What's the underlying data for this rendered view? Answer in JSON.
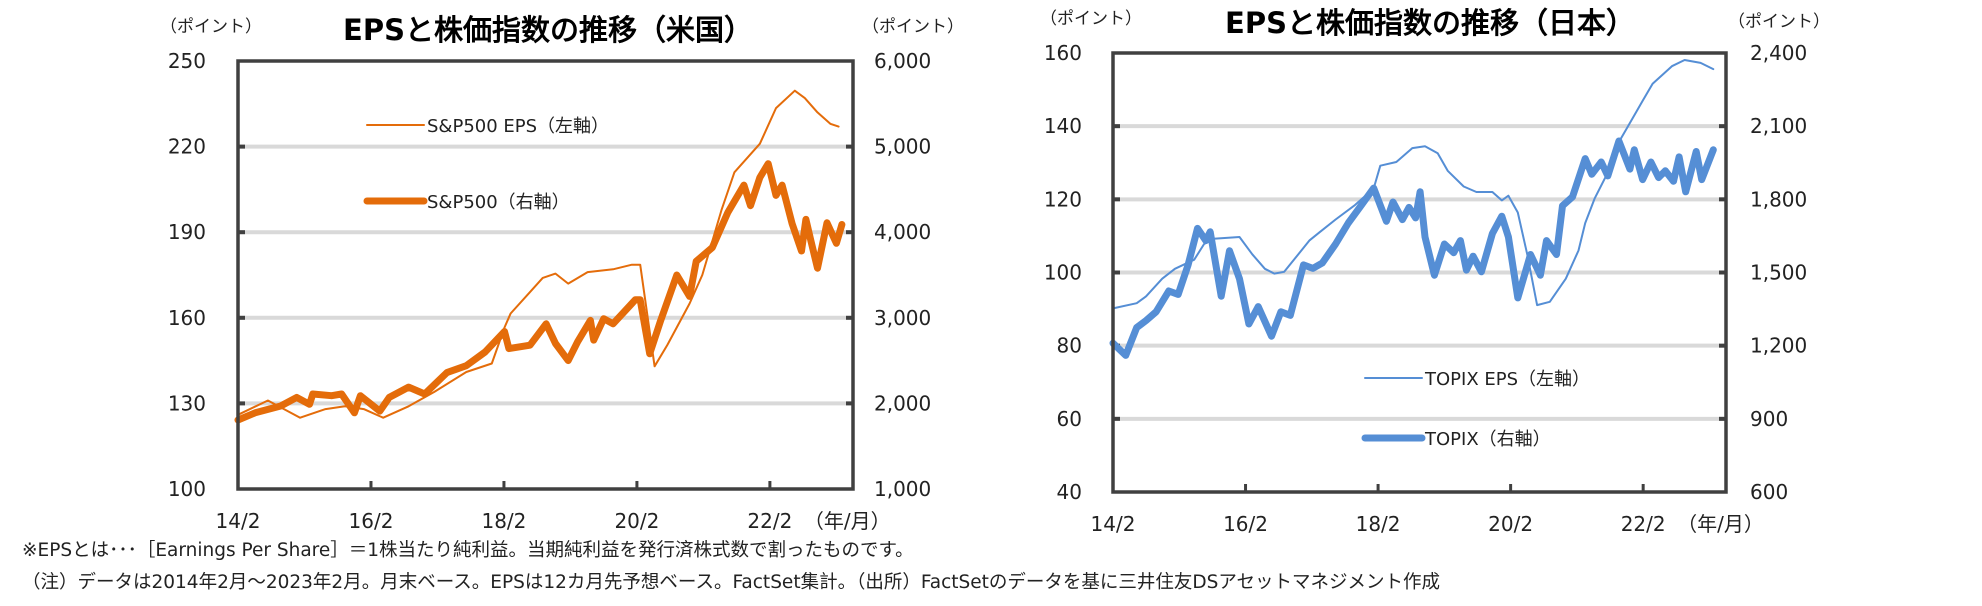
{
  "chart_data": [
    {
      "type": "line",
      "title": "EPSと株価指数の推移（米国）",
      "ylabel_left": "（ポイント）",
      "ylabel_right": "（ポイント）",
      "xlabel": "（年/月）",
      "x_unit_note": "months since 2014/2",
      "xlim": [
        0,
        111
      ],
      "x_ticks": [
        0,
        24,
        48,
        72,
        96
      ],
      "x_tick_labels": [
        "14/2",
        "16/2",
        "18/2",
        "20/2",
        "22/2"
      ],
      "ylim_left": [
        100,
        250
      ],
      "y_ticks_left": [
        100,
        130,
        160,
        190,
        220,
        250
      ],
      "y_tick_labels_left": [
        "100",
        "130",
        "160",
        "190",
        "220",
        "250"
      ],
      "ylim_right": [
        1000,
        6000
      ],
      "y_ticks_right": [
        1000,
        2000,
        3000,
        4000,
        5000,
        6000
      ],
      "y_tick_labels_right": [
        "1,000",
        "2,000",
        "3,000",
        "4,000",
        "5,000",
        "6,000"
      ],
      "grid": true,
      "color": "#E46C0A",
      "series": [
        {
          "name": "S&P500 EPS（左軸）",
          "axis": "left",
          "weight": "thin",
          "points": [
            [
              0,
              126
            ],
            [
              5.4,
              131
            ],
            [
              11.2,
              125
            ],
            [
              15.8,
              128
            ],
            [
              19.3,
              129
            ],
            [
              22.7,
              128
            ],
            [
              26.2,
              125
            ],
            [
              30.8,
              129
            ],
            [
              35.4,
              134
            ],
            [
              41.2,
              141
            ],
            [
              45.8,
              144
            ],
            [
              48.1,
              156.6
            ],
            [
              49.2,
              161.5
            ],
            [
              52.7,
              169
            ],
            [
              55,
              174
            ],
            [
              57.3,
              175.5
            ],
            [
              59.6,
              172
            ],
            [
              63.1,
              176
            ],
            [
              67.7,
              177
            ],
            [
              71.1,
              178.6
            ],
            [
              72.6,
              178.6
            ],
            [
              75.2,
              143
            ],
            [
              77.5,
              150.5
            ],
            [
              81.5,
              165
            ],
            [
              83.8,
              175
            ],
            [
              87.3,
              198
            ],
            [
              89.6,
              211
            ],
            [
              94.2,
              221
            ],
            [
              97.1,
              233.5
            ],
            [
              100.5,
              239.6
            ],
            [
              102.3,
              237
            ],
            [
              104.6,
              232
            ],
            [
              106.9,
              228
            ],
            [
              108.4,
              227
            ]
          ]
        },
        {
          "name": "S&P500（右軸）",
          "axis": "right",
          "weight": "thick",
          "points": [
            [
              0,
              1806
            ],
            [
              3.1,
              1890
            ],
            [
              7.7,
              1970
            ],
            [
              10.6,
              2070
            ],
            [
              12.9,
              1990
            ],
            [
              13.5,
              2110
            ],
            [
              16.9,
              2090
            ],
            [
              18.7,
              2110
            ],
            [
              21,
              1890
            ],
            [
              22.1,
              2090
            ],
            [
              25.6,
              1910
            ],
            [
              27.3,
              2070
            ],
            [
              30.8,
              2190
            ],
            [
              33.7,
              2110
            ],
            [
              37.7,
              2360
            ],
            [
              41.2,
              2440
            ],
            [
              44.6,
              2600
            ],
            [
              48.1,
              2840
            ],
            [
              48.9,
              2640
            ],
            [
              52.7,
              2680
            ],
            [
              55.6,
              2930
            ],
            [
              57.3,
              2700
            ],
            [
              59.6,
              2500
            ],
            [
              61.3,
              2720
            ],
            [
              63.6,
              2970
            ],
            [
              64.2,
              2740
            ],
            [
              66,
              2990
            ],
            [
              67.7,
              2930
            ],
            [
              71.7,
              3210
            ],
            [
              72.6,
              3210
            ],
            [
              74.3,
              2580
            ],
            [
              76.3,
              2970
            ],
            [
              79.2,
              3500
            ],
            [
              81.5,
              3250
            ],
            [
              82.7,
              3660
            ],
            [
              85.6,
              3820
            ],
            [
              88.4,
              4230
            ],
            [
              91.3,
              4550
            ],
            [
              92.5,
              4310
            ],
            [
              94.2,
              4640
            ],
            [
              95.7,
              4800
            ],
            [
              97.1,
              4430
            ],
            [
              98.2,
              4550
            ],
            [
              100,
              4100
            ],
            [
              101.7,
              3780
            ],
            [
              102.5,
              4150
            ],
            [
              103.4,
              3900
            ],
            [
              104.6,
              3580
            ],
            [
              106.3,
              4110
            ],
            [
              108,
              3870
            ],
            [
              109,
              4090
            ]
          ]
        }
      ]
    },
    {
      "type": "line",
      "title": "EPSと株価指数の推移（日本）",
      "ylabel_left": "（ポイント）",
      "ylabel_right": "（ポイント）",
      "xlabel": "（年/月）",
      "x_unit_note": "months since 2014/2",
      "xlim": [
        0,
        111
      ],
      "x_ticks": [
        0,
        24,
        48,
        72,
        96
      ],
      "x_tick_labels": [
        "14/2",
        "16/2",
        "18/2",
        "20/2",
        "22/2"
      ],
      "ylim_left": [
        40,
        160
      ],
      "y_ticks_left": [
        40,
        60,
        80,
        100,
        120,
        140,
        160
      ],
      "y_tick_labels_left": [
        "40",
        "60",
        "80",
        "100",
        "120",
        "140",
        "160"
      ],
      "ylim_right": [
        600,
        2400
      ],
      "y_ticks_right": [
        600,
        900,
        1200,
        1500,
        1800,
        2100,
        2400
      ],
      "y_tick_labels_right": [
        "600",
        "900",
        "1,200",
        "1,500",
        "1,800",
        "2,100",
        "2,400"
      ],
      "grid": true,
      "color": "#558ED5",
      "series": [
        {
          "name": "TOPIX  EPS（左軸）",
          "axis": "left",
          "weight": "thin",
          "points": [
            [
              0,
              90.2
            ],
            [
              4.3,
              91.6
            ],
            [
              6,
              93.5
            ],
            [
              8.9,
              98.3
            ],
            [
              11.2,
              101
            ],
            [
              14.7,
              103.5
            ],
            [
              16.5,
              107.8
            ],
            [
              18.2,
              109.2
            ],
            [
              22.9,
              109.7
            ],
            [
              25.2,
              105
            ],
            [
              27.5,
              101
            ],
            [
              29.2,
              99.7
            ],
            [
              31,
              100.2
            ],
            [
              35.6,
              108.8
            ],
            [
              37.4,
              111
            ],
            [
              40.3,
              114.5
            ],
            [
              43.7,
              118.3
            ],
            [
              47.2,
              123
            ],
            [
              48.4,
              129.2
            ],
            [
              51.3,
              130.2
            ],
            [
              54.2,
              134
            ],
            [
              56.5,
              134.5
            ],
            [
              58.8,
              132.6
            ],
            [
              60.6,
              127.8
            ],
            [
              63.5,
              123.5
            ],
            [
              65.8,
              122
            ],
            [
              68.7,
              122
            ],
            [
              70.4,
              119.7
            ],
            [
              71.6,
              121
            ],
            [
              73.3,
              116.4
            ],
            [
              75,
              105
            ],
            [
              76.8,
              91.1
            ],
            [
              79.1,
              92
            ],
            [
              82,
              98.3
            ],
            [
              84.3,
              106
            ],
            [
              85.5,
              113.5
            ],
            [
              87.2,
              120.2
            ],
            [
              90.1,
              128.8
            ],
            [
              91.9,
              136.4
            ],
            [
              94.8,
              144
            ],
            [
              95.9,
              146.9
            ],
            [
              97.7,
              151.6
            ],
            [
              101.2,
              156.4
            ],
            [
              103.5,
              158.1
            ],
            [
              106.4,
              157.3
            ],
            [
              108.7,
              155.6
            ]
          ]
        },
        {
          "name": "TOPIX（右軸）",
          "axis": "right",
          "weight": "thick",
          "points": [
            [
              0,
              1210
            ],
            [
              2.3,
              1160
            ],
            [
              4.3,
              1274
            ],
            [
              6,
              1303
            ],
            [
              7.8,
              1339
            ],
            [
              10.1,
              1424
            ],
            [
              11.8,
              1410
            ],
            [
              13.6,
              1531
            ],
            [
              15.3,
              1681
            ],
            [
              16.8,
              1631
            ],
            [
              17.6,
              1667
            ],
            [
              19.6,
              1403
            ],
            [
              21.1,
              1589
            ],
            [
              22.9,
              1474
            ],
            [
              24.6,
              1289
            ],
            [
              26.3,
              1360
            ],
            [
              28.7,
              1239
            ],
            [
              30.4,
              1339
            ],
            [
              32.1,
              1324
            ],
            [
              34.5,
              1531
            ],
            [
              36.2,
              1517
            ],
            [
              37.9,
              1539
            ],
            [
              40.3,
              1617
            ],
            [
              42.6,
              1703
            ],
            [
              44.9,
              1774
            ],
            [
              47.2,
              1846
            ],
            [
              49.5,
              1710
            ],
            [
              50.7,
              1789
            ],
            [
              52.4,
              1717
            ],
            [
              53.6,
              1767
            ],
            [
              54.8,
              1724
            ],
            [
              55.6,
              1831
            ],
            [
              56.5,
              1646
            ],
            [
              58.2,
              1489
            ],
            [
              60,
              1617
            ],
            [
              61.7,
              1581
            ],
            [
              62.9,
              1631
            ],
            [
              64,
              1510
            ],
            [
              65.2,
              1567
            ],
            [
              66.7,
              1503
            ],
            [
              68.7,
              1660
            ],
            [
              70.4,
              1731
            ],
            [
              71.6,
              1646
            ],
            [
              73.3,
              1396
            ],
            [
              75.6,
              1574
            ],
            [
              77.4,
              1489
            ],
            [
              78.5,
              1631
            ],
            [
              80.3,
              1574
            ],
            [
              81.4,
              1774
            ],
            [
              83.2,
              1810
            ],
            [
              85.5,
              1967
            ],
            [
              86.7,
              1903
            ],
            [
              88.4,
              1953
            ],
            [
              89.6,
              1896
            ],
            [
              91.6,
              2039
            ],
            [
              93.6,
              1924
            ],
            [
              94.4,
              2003
            ],
            [
              95.9,
              1881
            ],
            [
              97.4,
              1953
            ],
            [
              98.8,
              1889
            ],
            [
              100,
              1917
            ],
            [
              101.5,
              1874
            ],
            [
              102.5,
              1974
            ],
            [
              103.7,
              1831
            ],
            [
              105.6,
              1996
            ],
            [
              106.6,
              1881
            ],
            [
              108.7,
              2003
            ]
          ]
        }
      ]
    }
  ],
  "footnotes": {
    "line1": "※EPSとは･･･［Earnings Per Share］＝1株当たり純利益。当期純利益を発行済株式数で割ったものです。",
    "line2": "（注）データは2014年2月～2023年2月。月末ベース。EPSは12カ月先予想ベース。FactSet集計。（出所）FactSetのデータを基に三井住友DSアセットマネジメント作成"
  }
}
